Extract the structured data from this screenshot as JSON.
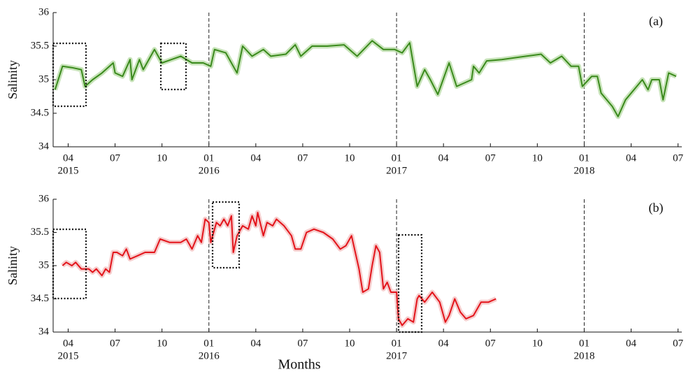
{
  "chart_data": [
    {
      "type": "line",
      "ylabel": "Salinity",
      "annotation": "(a)",
      "color": "#3a8a1c",
      "band_color": "#b9dca8",
      "xlim": [
        2015.17,
        2018.52
      ],
      "ylim": [
        34,
        36
      ],
      "yticks": [
        34,
        34.5,
        35,
        35.5,
        36
      ],
      "xticks": [
        {
          "value": 2015.25,
          "label": "04"
        },
        {
          "value": 2015.5,
          "label": "07"
        },
        {
          "value": 2015.75,
          "label": "10"
        },
        {
          "value": 2016,
          "label": "01"
        },
        {
          "value": 2016.25,
          "label": "04"
        },
        {
          "value": 2016.5,
          "label": "07"
        },
        {
          "value": 2016.75,
          "label": "10"
        },
        {
          "value": 2017,
          "label": "01"
        },
        {
          "value": 2017.25,
          "label": "04"
        },
        {
          "value": 2017.5,
          "label": "07"
        },
        {
          "value": 2017.75,
          "label": "10"
        },
        {
          "value": 2018,
          "label": "01"
        },
        {
          "value": 2018.25,
          "label": "04"
        },
        {
          "value": 2018.5,
          "label": "07"
        }
      ],
      "xtick_years": [
        {
          "value": 2015.25,
          "label": "2015"
        },
        {
          "value": 2016,
          "label": "2016"
        },
        {
          "value": 2017,
          "label": "2017"
        },
        {
          "value": 2018,
          "label": "2018"
        }
      ],
      "vlines": [
        2016,
        2017,
        2018
      ],
      "x": [
        2015.18,
        2015.22,
        2015.27,
        2015.32,
        2015.34,
        2015.38,
        2015.43,
        2015.49,
        2015.5,
        2015.54,
        2015.58,
        2015.59,
        2015.63,
        2015.65,
        2015.71,
        2015.75,
        2015.8,
        2015.85,
        2015.91,
        2015.97,
        2016.01,
        2016.03,
        2016.09,
        2016.13,
        2016.15,
        2016.18,
        2016.23,
        2016.29,
        2016.33,
        2016.41,
        2016.46,
        2016.49,
        2016.55,
        2016.63,
        2016.72,
        2016.79,
        2016.87,
        2016.93,
        2016.99,
        2017.03,
        2017.07,
        2017.11,
        2017.15,
        2017.18,
        2017.22,
        2017.28,
        2017.32,
        2017.4,
        2017.41,
        2017.44,
        2017.48,
        2017.56,
        2017.69,
        2017.77,
        2017.82,
        2017.88,
        2017.93,
        2017.97,
        2017.99,
        2018.04,
        2018.07,
        2018.09,
        2018.15,
        2018.18,
        2018.22,
        2018.28,
        2018.31,
        2018.34,
        2018.36,
        2018.4,
        2018.42,
        2018.45,
        2018.49
      ],
      "values": [
        34.85,
        35.2,
        35.18,
        35.15,
        34.9,
        35.0,
        35.1,
        35.25,
        35.1,
        35.05,
        35.3,
        35.0,
        35.3,
        35.15,
        35.45,
        35.25,
        35.3,
        35.35,
        35.25,
        35.25,
        35.2,
        35.45,
        35.4,
        35.2,
        35.1,
        35.5,
        35.35,
        35.45,
        35.35,
        35.38,
        35.52,
        35.35,
        35.5,
        35.5,
        35.52,
        35.35,
        35.58,
        35.45,
        35.45,
        35.4,
        35.55,
        34.9,
        35.15,
        35.0,
        34.78,
        35.25,
        34.9,
        35.0,
        35.2,
        35.1,
        35.28,
        35.3,
        35.35,
        35.38,
        35.25,
        35.35,
        35.2,
        35.2,
        34.9,
        35.05,
        35.05,
        34.8,
        34.6,
        34.45,
        34.7,
        34.9,
        35.0,
        34.85,
        35.0,
        35.0,
        34.7,
        35.1,
        35.05
      ]
    },
    {
      "type": "line",
      "ylabel": "Salinity",
      "annotation": "(b)",
      "xlabel": "Months",
      "color": "#e3141b",
      "band_color": "#f4c0c0",
      "xlim": [
        2015.17,
        2018.52
      ],
      "ylim": [
        34,
        36
      ],
      "yticks": [
        34,
        34.5,
        35,
        35.5,
        36
      ],
      "xticks": [
        {
          "value": 2015.25,
          "label": "04"
        },
        {
          "value": 2015.5,
          "label": "07"
        },
        {
          "value": 2015.75,
          "label": "10"
        },
        {
          "value": 2016,
          "label": "01"
        },
        {
          "value": 2016.25,
          "label": "04"
        },
        {
          "value": 2016.5,
          "label": "07"
        },
        {
          "value": 2016.75,
          "label": "10"
        },
        {
          "value": 2017,
          "label": "01"
        },
        {
          "value": 2017.25,
          "label": "04"
        },
        {
          "value": 2017.5,
          "label": "07"
        },
        {
          "value": 2017.75,
          "label": "10"
        },
        {
          "value": 2018,
          "label": "01"
        },
        {
          "value": 2018.25,
          "label": "04"
        },
        {
          "value": 2018.5,
          "label": "07"
        }
      ],
      "xtick_years": [
        {
          "value": 2015.25,
          "label": "2015"
        },
        {
          "value": 2016,
          "label": "2016"
        },
        {
          "value": 2017,
          "label": "2017"
        },
        {
          "value": 2018,
          "label": "2018"
        }
      ],
      "vlines": [
        2016,
        2017,
        2018
      ],
      "x": [
        2015.22,
        2015.24,
        2015.27,
        2015.29,
        2015.32,
        2015.36,
        2015.38,
        2015.4,
        2015.43,
        2015.45,
        2015.47,
        2015.49,
        2015.51,
        2015.54,
        2015.56,
        2015.58,
        2015.62,
        2015.66,
        2015.71,
        2015.74,
        2015.79,
        2015.85,
        2015.88,
        2015.91,
        2015.94,
        2015.96,
        2015.98,
        2016.0,
        2016.01,
        2016.04,
        2016.06,
        2016.08,
        2016.1,
        2016.12,
        2016.13,
        2016.15,
        2016.18,
        2016.21,
        2016.23,
        2016.25,
        2016.26,
        2016.29,
        2016.31,
        2016.34,
        2016.36,
        2016.4,
        2016.44,
        2016.46,
        2016.49,
        2016.52,
        2016.56,
        2016.61,
        2016.66,
        2016.7,
        2016.73,
        2016.76,
        2016.8,
        2016.82,
        2016.85,
        2016.87,
        2016.89,
        2016.91,
        2016.93,
        2016.95,
        2016.97,
        2017.0,
        2017.01,
        2017.03,
        2017.06,
        2017.09,
        2017.11,
        2017.12,
        2017.15,
        2017.19,
        2017.23,
        2017.26,
        2017.28,
        2017.31,
        2017.34,
        2017.37,
        2017.41,
        2017.45,
        2017.49,
        2017.53
      ],
      "values": [
        35.0,
        35.05,
        35.0,
        35.05,
        34.95,
        34.95,
        34.9,
        34.95,
        34.85,
        34.95,
        34.9,
        35.2,
        35.2,
        35.15,
        35.25,
        35.1,
        35.15,
        35.2,
        35.2,
        35.4,
        35.35,
        35.35,
        35.4,
        35.25,
        35.45,
        35.35,
        35.7,
        35.65,
        35.35,
        35.65,
        35.6,
        35.7,
        35.6,
        35.75,
        35.2,
        35.45,
        35.6,
        35.55,
        35.75,
        35.6,
        35.8,
        35.45,
        35.65,
        35.6,
        35.7,
        35.6,
        35.45,
        35.25,
        35.25,
        35.5,
        35.55,
        35.5,
        35.4,
        35.25,
        35.3,
        35.45,
        34.95,
        34.6,
        34.65,
        35.0,
        35.3,
        35.2,
        34.65,
        34.75,
        34.6,
        34.6,
        34.2,
        34.1,
        34.2,
        34.15,
        34.5,
        34.55,
        34.45,
        34.6,
        34.45,
        34.15,
        34.25,
        34.5,
        34.3,
        34.2,
        34.25,
        34.45,
        34.45,
        34.5
      ]
    }
  ]
}
